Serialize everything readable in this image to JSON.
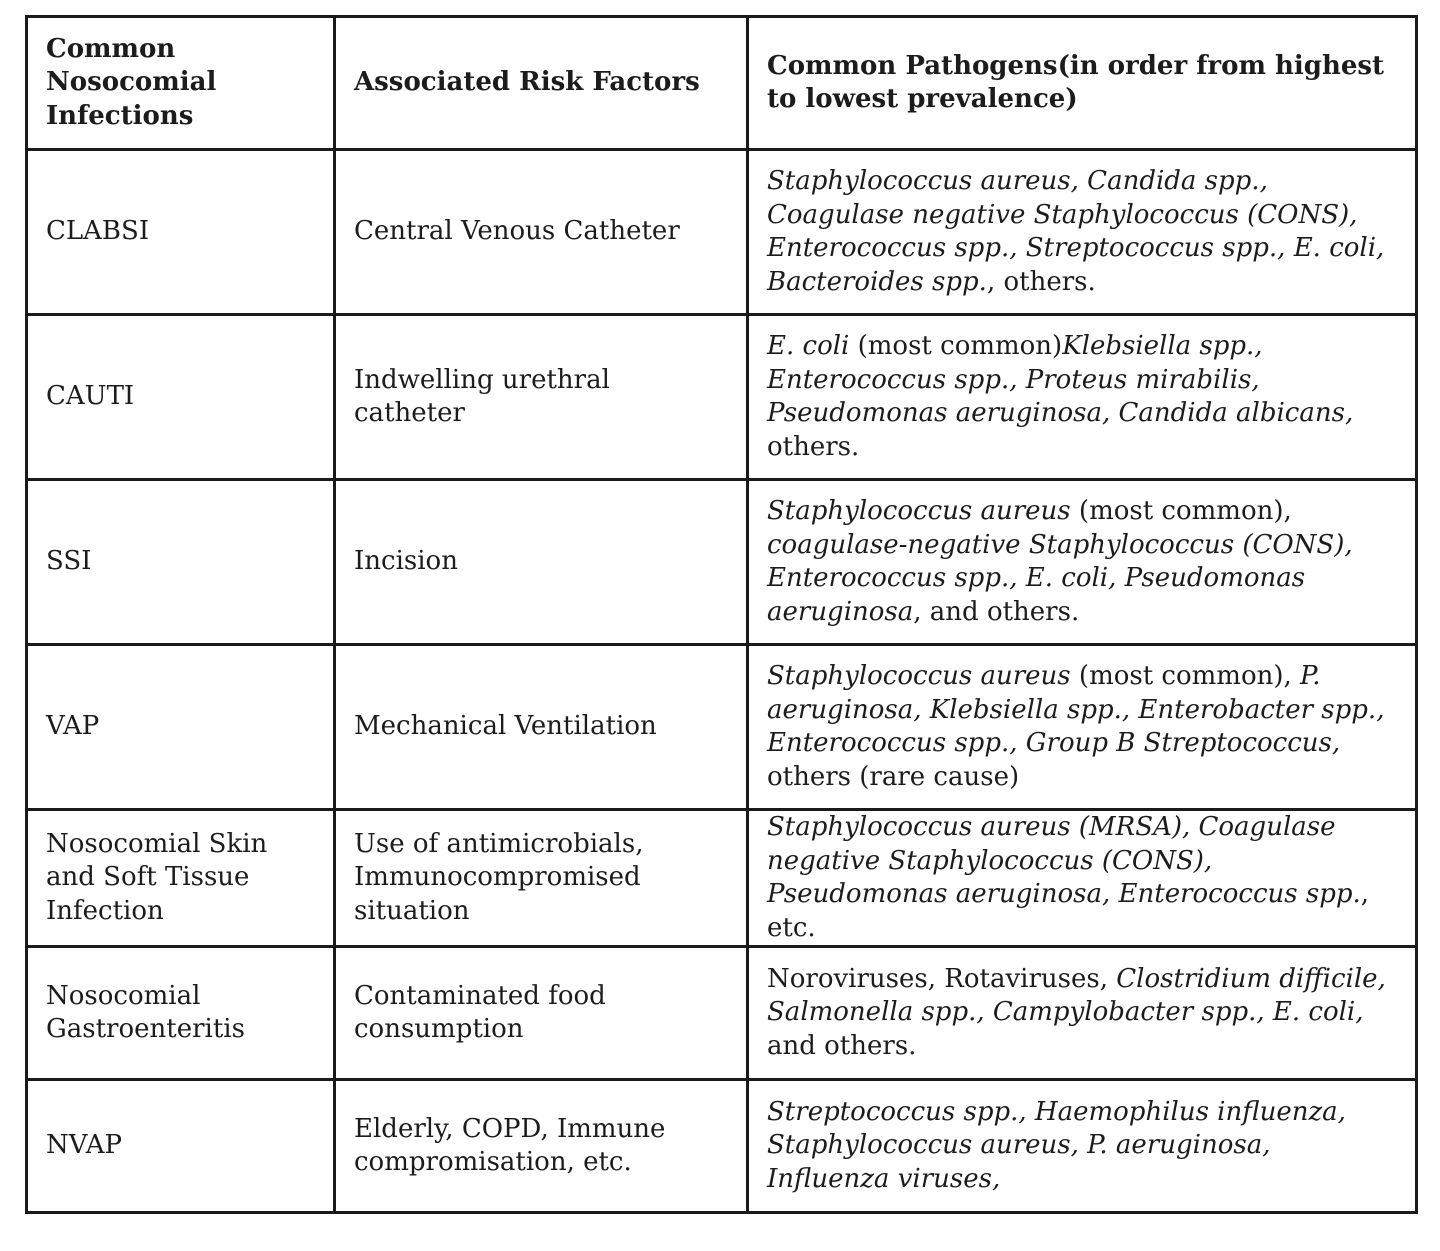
{
  "table": {
    "headers": [
      "Common Nosocomial Infections",
      "Associated Risk Factors",
      "Common Pathogens(in order from highest to lowest prevalence)"
    ],
    "rows": [
      {
        "infection": "CLABSI",
        "risk": "Central Venous Catheter",
        "pathogens": [
          {
            "text": "Staphylococcus aureus, Candida spp., Coagulase negative Staphylococcus (CONS), Enterococcus spp., Streptococcus spp., E. coli, Bacteroides spp.",
            "italic": true
          },
          {
            "text": ", others.",
            "italic": false
          }
        ]
      },
      {
        "infection": "CAUTI",
        "risk": "Indwelling urethral catheter",
        "pathogens": [
          {
            "text": "E. coli",
            "italic": true
          },
          {
            "text": " (most common)",
            "italic": false
          },
          {
            "text": "Klebsiella spp., Enterococcus spp., Proteus mirabilis, Pseudomonas aeruginosa, Candida albicans,",
            "italic": true
          },
          {
            "text": " others.",
            "italic": false
          }
        ]
      },
      {
        "infection": "SSI",
        "risk": "Incision",
        "pathogens": [
          {
            "text": "Staphylococcus aureus",
            "italic": true
          },
          {
            "text": " (most common), ",
            "italic": false
          },
          {
            "text": "coagulase-negative Staphylococcus (CONS), Enterococcus spp., E. coli, Pseudomonas aeruginosa",
            "italic": true
          },
          {
            "text": ", and others.",
            "italic": false
          }
        ]
      },
      {
        "infection": "VAP",
        "risk": "Mechanical Ventilation",
        "pathogens": [
          {
            "text": "Staphylococcus aureus",
            "italic": true
          },
          {
            "text": " (most common), ",
            "italic": false
          },
          {
            "text": "P. aeruginosa, Klebsiella spp., Enterobacter spp., Enterococcus spp., Group B Streptococcus,",
            "italic": true
          },
          {
            "text": " others (rare cause)",
            "italic": false
          }
        ]
      },
      {
        "infection": "Nosocomial Skin and Soft Tissue Infection",
        "risk": "Use of antimicrobials, Immunocompromised situation",
        "pathogens": [
          {
            "text": "Staphylococcus aureus (MRSA), Coagulase negative Staphylococcus (CONS), Pseudomonas aeruginosa, Enterococcus spp.",
            "italic": true
          },
          {
            "text": ", etc.",
            "italic": false
          }
        ]
      },
      {
        "infection": "Nosocomial Gastroenteritis",
        "risk": "Contaminated food consumption",
        "pathogens": [
          {
            "text": "Noroviruses, Rotaviruses, ",
            "italic": false
          },
          {
            "text": "Clostridium difficile, Salmonella spp., Campylobacter spp., E. coli,",
            "italic": true
          },
          {
            "text": " and others.",
            "italic": false
          }
        ]
      },
      {
        "infection": "NVAP",
        "risk": "Elderly, COPD, Immune compromisation, etc.",
        "pathogens": [
          {
            "text": "Streptococcus spp., Haemophilus influenza, Staphylococcus aureus, P. aeruginosa, Influenza viruses,",
            "italic": true
          }
        ]
      }
    ]
  }
}
